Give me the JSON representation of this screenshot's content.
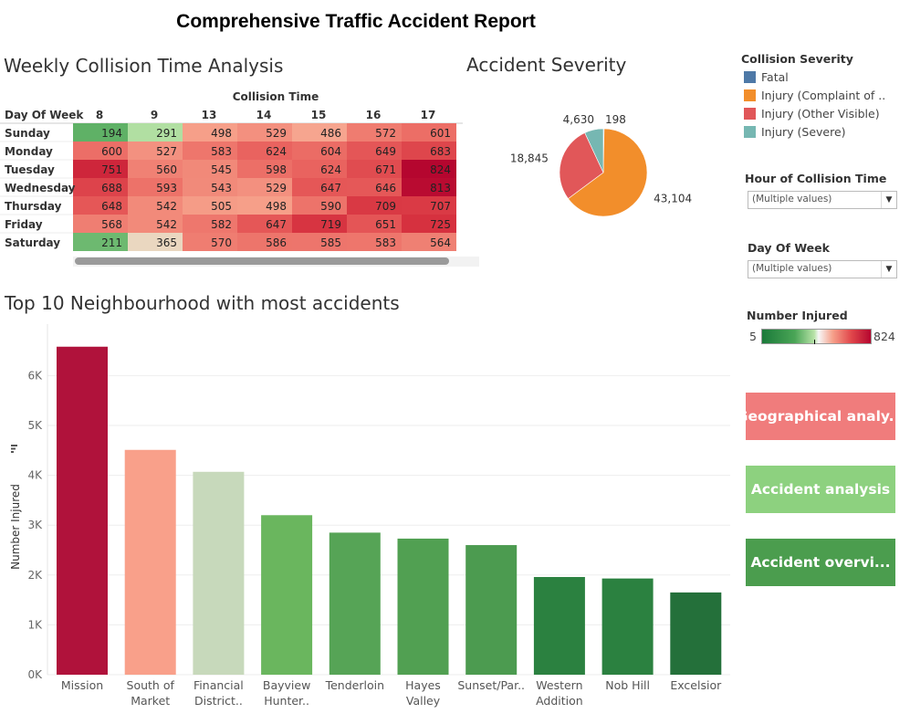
{
  "title": "Comprehensive Traffic Accident Report",
  "heatmap": {
    "title": "Weekly Collision Time Analysis",
    "col_header": "Collision Time",
    "row_header": "Day Of Week",
    "scrollbar": "horizontal"
  },
  "pie": {
    "title": "Accident Severity"
  },
  "bar": {
    "title": "Top 10  Neighbourhood with most accidents"
  },
  "legend": {
    "title": "Collision Severity",
    "items": [
      {
        "label": "Fatal",
        "color": "#4e79a7"
      },
      {
        "label": "Injury (Complaint of ..",
        "color": "#f28e2b"
      },
      {
        "label": "Injury (Other Visible)",
        "color": "#e15759"
      },
      {
        "label": "Injury (Severe)",
        "color": "#76b7b2"
      }
    ]
  },
  "filters": {
    "hour": {
      "label": "Hour of Collision Time",
      "value": "(Multiple values)"
    },
    "day": {
      "label": "Day Of Week",
      "value": "(Multiple values)"
    }
  },
  "color_legend": {
    "title": "Number Injured",
    "min": "5",
    "max": "824"
  },
  "nav_buttons": [
    {
      "label": "Geographical analy...",
      "color": "#f07c7c"
    },
    {
      "label": "Accident analysis",
      "color": "#8dd17f"
    },
    {
      "label": "Accident overvi...",
      "color": "#4b9d4e"
    }
  ],
  "chart_data": [
    {
      "type": "heatmap",
      "title": "Weekly Collision Time Analysis",
      "xlabel": "Collision Time",
      "ylabel": "Day Of Week",
      "x": [
        "8",
        "9",
        "13",
        "14",
        "15",
        "16",
        "17"
      ],
      "y": [
        "Sunday",
        "Monday",
        "Tuesday",
        "Wednesday",
        "Thursday",
        "Friday",
        "Saturday"
      ],
      "values": [
        [
          194,
          291,
          498,
          529,
          486,
          572,
          601
        ],
        [
          600,
          527,
          583,
          624,
          604,
          649,
          683
        ],
        [
          751,
          560,
          545,
          598,
          624,
          671,
          824
        ],
        [
          688,
          593,
          543,
          529,
          647,
          646,
          813
        ],
        [
          648,
          542,
          505,
          498,
          590,
          709,
          707
        ],
        [
          568,
          542,
          582,
          647,
          719,
          651,
          725
        ],
        [
          211,
          365,
          570,
          586,
          585,
          583,
          564
        ]
      ],
      "color_range": [
        5,
        824
      ]
    },
    {
      "type": "pie",
      "title": "Accident Severity",
      "slices": [
        {
          "label": "Fatal",
          "value": 198,
          "display": "198",
          "color": "#4e79a7"
        },
        {
          "label": "Injury (Complaint of ..",
          "value": 43104,
          "display": "43,104",
          "color": "#f28e2b"
        },
        {
          "label": "Injury (Other Visible)",
          "value": 18845,
          "display": "18,845",
          "color": "#e15759"
        },
        {
          "label": "Injury (Severe)",
          "value": 4630,
          "display": "4,630",
          "color": "#76b7b2"
        }
      ]
    },
    {
      "type": "bar",
      "title": "Top 10  Neighbourhood with most accidents",
      "xlabel": "",
      "ylabel": "Number Injured",
      "ylim": [
        0,
        6850
      ],
      "yticks": [
        "0K",
        "1K",
        "2K",
        "3K",
        "4K",
        "5K",
        "6K"
      ],
      "categories": [
        [
          "Mission"
        ],
        [
          "South of",
          "Market"
        ],
        [
          "Financial",
          "District.."
        ],
        [
          "Bayview",
          "Hunter.."
        ],
        [
          "Tenderloin"
        ],
        [
          "Hayes",
          "Valley"
        ],
        [
          "Sunset/Par.."
        ],
        [
          "Western",
          "Addition"
        ],
        [
          "Nob Hill"
        ],
        [
          "Excelsior"
        ]
      ],
      "values": [
        6580,
        4510,
        4070,
        3200,
        2850,
        2730,
        2600,
        1960,
        1930,
        1650
      ],
      "colors": [
        "#b0123b",
        "#f9a08a",
        "#c7d9bb",
        "#6ab65e",
        "#56a456",
        "#51a052",
        "#4c9b50",
        "#2b8140",
        "#2b8140",
        "#24703a"
      ]
    }
  ]
}
